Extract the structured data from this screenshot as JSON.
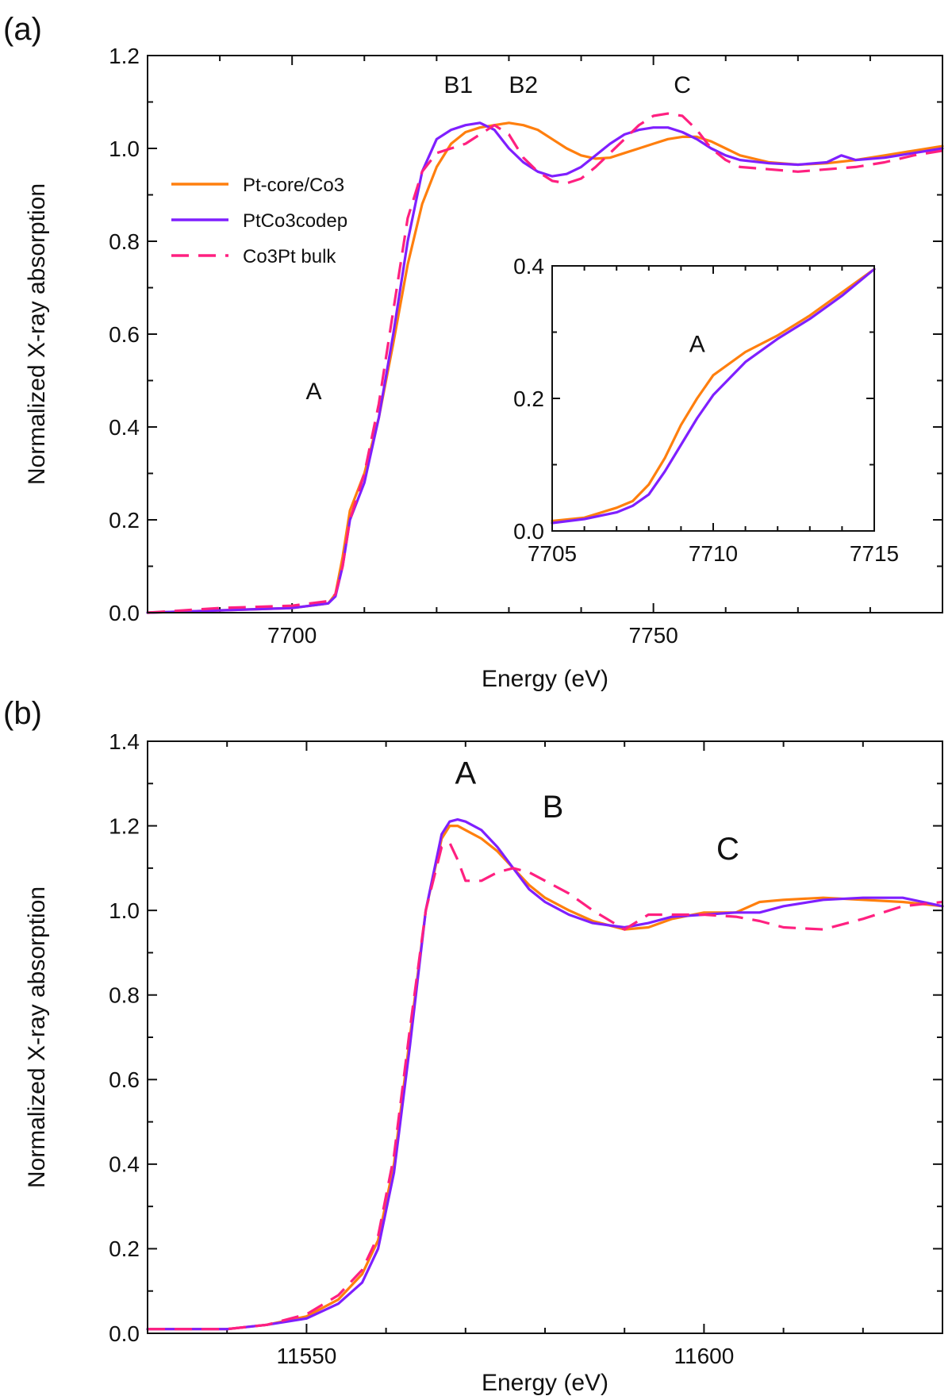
{
  "colors": {
    "pt_core_co3": "#ff7f0e",
    "ptco3_codep": "#7f1fff",
    "co3pt_bulk": "#ff2080",
    "axis": "#111111"
  },
  "chart_data": [
    {
      "id": "a",
      "panel_label": "(a)",
      "type": "line",
      "xlabel": "Energy (eV)",
      "ylabel": "Normalized X-ray absorption",
      "xlim": [
        7680,
        7790
      ],
      "ylim": [
        0,
        1.2
      ],
      "xticks": [
        7700,
        7750
      ],
      "xticks_minor": [
        7690,
        7710,
        7720,
        7730,
        7740,
        7760,
        7770,
        7780
      ],
      "yticks": [
        0.0,
        0.2,
        0.4,
        0.6,
        0.8,
        1.0,
        1.2
      ],
      "ytick_labels": [
        "0.0",
        "0.2",
        "0.4",
        "0.6",
        "0.8",
        "1.0",
        "1.2"
      ],
      "legend": {
        "position": "upper-left",
        "entries": [
          "Pt-core/Co3",
          "PtCo3codep",
          "Co3Pt bulk"
        ]
      },
      "annotations": [
        {
          "text": "A",
          "x": 7703,
          "y": 0.46
        },
        {
          "text": "B1",
          "x": 7723,
          "y": 1.12
        },
        {
          "text": "B2",
          "x": 7732,
          "y": 1.12
        },
        {
          "text": "C",
          "x": 7754,
          "y": 1.12
        }
      ],
      "series": [
        {
          "name": "Pt-core/Co3",
          "style": "solid",
          "color": "#ff7f0e",
          "x": [
            7680,
            7690,
            7700,
            7705,
            7706,
            7707,
            7708,
            7710,
            7712,
            7714,
            7716,
            7718,
            7720,
            7722,
            7724,
            7726,
            7728,
            7730,
            7732,
            7734,
            7736,
            7738,
            7740,
            7742,
            7744,
            7746,
            7748,
            7750,
            7752,
            7754,
            7756,
            7758,
            7760,
            7762,
            7766,
            7770,
            7774,
            7778,
            7782,
            7786,
            7790
          ],
          "y": [
            0.0,
            0.005,
            0.01,
            0.02,
            0.04,
            0.12,
            0.22,
            0.3,
            0.42,
            0.58,
            0.75,
            0.88,
            0.96,
            1.01,
            1.035,
            1.045,
            1.05,
            1.055,
            1.05,
            1.04,
            1.02,
            1.0,
            0.985,
            0.978,
            0.98,
            0.99,
            1.0,
            1.01,
            1.02,
            1.025,
            1.025,
            1.015,
            1.0,
            0.985,
            0.97,
            0.965,
            0.968,
            0.975,
            0.985,
            0.995,
            1.005
          ]
        },
        {
          "name": "PtCo3codep",
          "style": "solid",
          "color": "#7f1fff",
          "x": [
            7680,
            7690,
            7700,
            7705,
            7706,
            7707,
            7708,
            7710,
            7712,
            7714,
            7716,
            7718,
            7720,
            7722,
            7724,
            7726,
            7728,
            7730,
            7732,
            7734,
            7736,
            7738,
            7740,
            7742,
            7744,
            7746,
            7748,
            7750,
            7752,
            7754,
            7756,
            7758,
            7760,
            7762,
            7766,
            7770,
            7774,
            7776,
            7778,
            7782,
            7786,
            7790
          ],
          "y": [
            0.0,
            0.005,
            0.01,
            0.02,
            0.035,
            0.1,
            0.2,
            0.28,
            0.42,
            0.6,
            0.8,
            0.95,
            1.02,
            1.04,
            1.05,
            1.055,
            1.04,
            1.0,
            0.97,
            0.95,
            0.94,
            0.945,
            0.96,
            0.985,
            1.01,
            1.03,
            1.04,
            1.045,
            1.045,
            1.035,
            1.02,
            1.0,
            0.985,
            0.975,
            0.968,
            0.965,
            0.97,
            0.985,
            0.975,
            0.98,
            0.99,
            1.0
          ]
        },
        {
          "name": "Co3Pt bulk",
          "style": "dashed",
          "color": "#ff2080",
          "x": [
            7680,
            7690,
            7700,
            7705,
            7706,
            7707,
            7708,
            7710,
            7712,
            7714,
            7716,
            7718,
            7720,
            7722,
            7724,
            7726,
            7728,
            7730,
            7732,
            7734,
            7736,
            7738,
            7740,
            7742,
            7744,
            7746,
            7748,
            7750,
            7752,
            7754,
            7756,
            7758,
            7760,
            7762,
            7766,
            7770,
            7774,
            7778,
            7782,
            7786,
            7790
          ],
          "y": [
            0.0,
            0.01,
            0.015,
            0.025,
            0.04,
            0.1,
            0.2,
            0.3,
            0.45,
            0.65,
            0.85,
            0.95,
            0.99,
            1.0,
            1.01,
            1.03,
            1.05,
            1.03,
            0.98,
            0.95,
            0.93,
            0.925,
            0.935,
            0.96,
            0.99,
            1.02,
            1.05,
            1.07,
            1.075,
            1.07,
            1.04,
            1.0,
            0.975,
            0.96,
            0.955,
            0.95,
            0.955,
            0.96,
            0.97,
            0.985,
            0.995
          ]
        }
      ]
    },
    {
      "id": "a_inset",
      "type": "line",
      "xlim": [
        7705,
        7715
      ],
      "ylim": [
        0,
        0.4
      ],
      "xticks": [
        7705,
        7710,
        7715
      ],
      "xticks_minor": [
        7706,
        7707,
        7708,
        7709,
        7711,
        7712,
        7713,
        7714
      ],
      "yticks": [
        0.0,
        0.2,
        0.4
      ],
      "ytick_labels": [
        "0.0",
        "0.2",
        "0.4"
      ],
      "annotations": [
        {
          "text": "A",
          "x": 7709.5,
          "y": 0.27
        }
      ],
      "series": [
        {
          "name": "Pt-core/Co3",
          "style": "solid",
          "color": "#ff7f0e",
          "x": [
            7705,
            7706,
            7707,
            7707.5,
            7708,
            7708.5,
            7709,
            7709.5,
            7710,
            7711,
            7712,
            7713,
            7714,
            7715
          ],
          "y": [
            0.015,
            0.02,
            0.035,
            0.045,
            0.07,
            0.11,
            0.16,
            0.2,
            0.235,
            0.27,
            0.295,
            0.325,
            0.36,
            0.395
          ]
        },
        {
          "name": "PtCo3codep",
          "style": "solid",
          "color": "#7f1fff",
          "x": [
            7705,
            7706,
            7707,
            7707.5,
            7708,
            7708.5,
            7709,
            7709.5,
            7710,
            7711,
            7712,
            7713,
            7714,
            7715
          ],
          "y": [
            0.012,
            0.018,
            0.028,
            0.038,
            0.055,
            0.09,
            0.13,
            0.17,
            0.205,
            0.255,
            0.29,
            0.32,
            0.355,
            0.395
          ]
        }
      ]
    },
    {
      "id": "b",
      "panel_label": "(b)",
      "type": "line",
      "xlabel": "Energy (eV)",
      "ylabel": "Normalized X-ray absorption",
      "xlim": [
        11530,
        11630
      ],
      "ylim": [
        0,
        1.4
      ],
      "xticks": [
        11550,
        11600
      ],
      "xticks_minor": [
        11540,
        11560,
        11570,
        11580,
        11590,
        11610,
        11620
      ],
      "yticks": [
        0.0,
        0.2,
        0.4,
        0.6,
        0.8,
        1.0,
        1.2,
        1.4
      ],
      "ytick_labels": [
        "0.0",
        "0.2",
        "0.4",
        "0.6",
        "0.8",
        "1.0",
        "1.2",
        "1.4"
      ],
      "annotations": [
        {
          "text": "A",
          "x": 11570,
          "y": 1.3
        },
        {
          "text": "B",
          "x": 11581,
          "y": 1.22
        },
        {
          "text": "C",
          "x": 11603,
          "y": 1.12
        }
      ],
      "series": [
        {
          "name": "Pt-core/Co3",
          "style": "solid",
          "color": "#ff7f0e",
          "x": [
            11530,
            11540,
            11545,
            11550,
            11554,
            11557,
            11559,
            11561,
            11563,
            11565,
            11567,
            11568,
            11569,
            11570,
            11572,
            11574,
            11576,
            11578,
            11580,
            11583,
            11586,
            11590,
            11593,
            11596,
            11600,
            11604,
            11607,
            11610,
            11615,
            11620,
            11625,
            11630
          ],
          "y": [
            0.01,
            0.01,
            0.02,
            0.04,
            0.08,
            0.14,
            0.22,
            0.4,
            0.7,
            1.0,
            1.17,
            1.2,
            1.2,
            1.19,
            1.17,
            1.14,
            1.1,
            1.06,
            1.03,
            1.0,
            0.975,
            0.955,
            0.96,
            0.98,
            0.995,
            0.995,
            1.02,
            1.025,
            1.03,
            1.025,
            1.02,
            1.01
          ]
        },
        {
          "name": "PtCo3codep",
          "style": "solid",
          "color": "#7f1fff",
          "x": [
            11530,
            11540,
            11545,
            11550,
            11554,
            11557,
            11559,
            11561,
            11563,
            11565,
            11567,
            11568,
            11569,
            11570,
            11572,
            11574,
            11576,
            11578,
            11580,
            11583,
            11586,
            11590,
            11593,
            11596,
            11600,
            11604,
            11607,
            11610,
            11615,
            11620,
            11625,
            11630
          ],
          "y": [
            0.01,
            0.01,
            0.02,
            0.035,
            0.07,
            0.12,
            0.2,
            0.38,
            0.68,
            1.0,
            1.18,
            1.21,
            1.215,
            1.21,
            1.19,
            1.15,
            1.1,
            1.05,
            1.02,
            0.99,
            0.97,
            0.96,
            0.97,
            0.985,
            0.99,
            0.995,
            0.995,
            1.01,
            1.025,
            1.03,
            1.03,
            1.01
          ]
        },
        {
          "name": "Co3Pt bulk",
          "style": "dashed",
          "color": "#ff2080",
          "x": [
            11530,
            11540,
            11545,
            11550,
            11554,
            11557,
            11559,
            11561,
            11563,
            11565,
            11567,
            11568,
            11569,
            11570,
            11572,
            11574,
            11576,
            11578,
            11580,
            11583,
            11586,
            11590,
            11593,
            11596,
            11600,
            11604,
            11607,
            11610,
            11615,
            11620,
            11625,
            11630
          ],
          "y": [
            0.01,
            0.01,
            0.02,
            0.045,
            0.09,
            0.15,
            0.23,
            0.42,
            0.72,
            1.0,
            1.15,
            1.16,
            1.12,
            1.07,
            1.07,
            1.09,
            1.1,
            1.09,
            1.07,
            1.04,
            1.0,
            0.955,
            0.99,
            0.99,
            0.99,
            0.985,
            0.975,
            0.96,
            0.955,
            0.98,
            1.01,
            1.02
          ]
        }
      ]
    }
  ]
}
